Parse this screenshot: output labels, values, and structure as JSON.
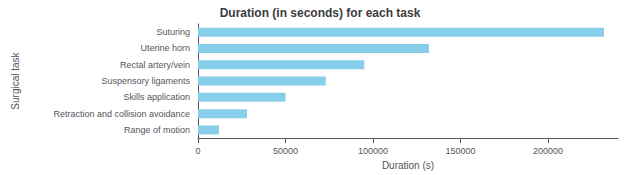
{
  "chart_data": {
    "type": "bar",
    "orientation": "horizontal",
    "title": "Duration (in seconds) for each task",
    "xlabel": "Duration (s)",
    "ylabel": "Surgical task",
    "categories": [
      "Range of motion",
      "Retraction and collision avoidance",
      "Skills application",
      "Suspensory ligaments",
      "Rectal artery/vein",
      "Uterine horn",
      "Suturing"
    ],
    "values": [
      12000,
      28000,
      50000,
      73000,
      95000,
      132000,
      232000
    ],
    "color": "#87CEEB",
    "xlim": [
      0,
      240000
    ],
    "xticks": [
      0,
      50000,
      100000,
      150000,
      200000
    ],
    "grid": false
  }
}
